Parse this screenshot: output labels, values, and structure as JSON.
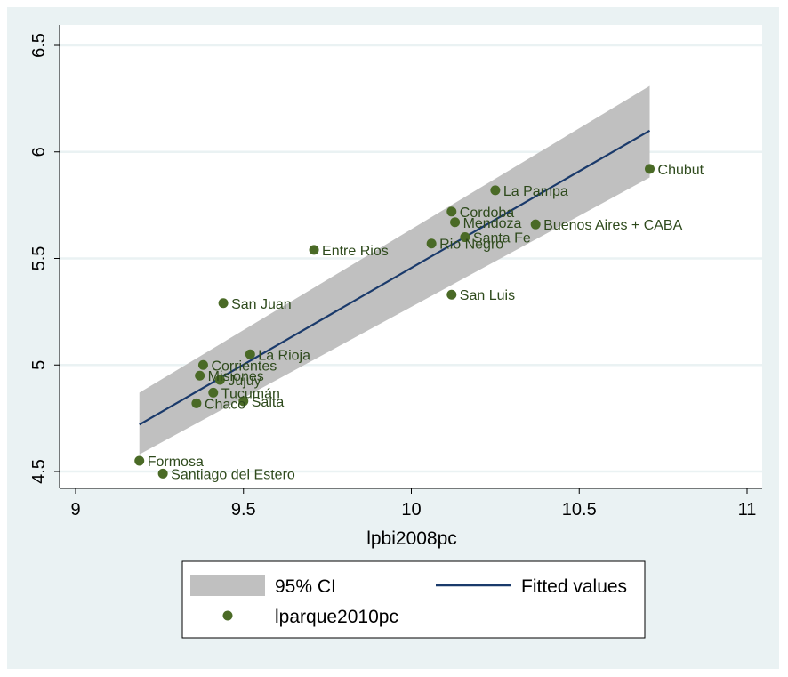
{
  "chart_data": {
    "type": "scatter",
    "xlabel": "lpbi2008pc",
    "ylabel": "",
    "xlim": [
      9,
      11
    ],
    "ylim": [
      4.5,
      6.5
    ],
    "xticks": [
      "9",
      "9.5",
      "10",
      "10.5",
      "11"
    ],
    "yticks": [
      "4.5",
      "5",
      "5.5",
      "6",
      "6.5"
    ],
    "grid": true,
    "legend_position": "bottom",
    "legend": {
      "ci": "95% CI",
      "fit": "Fitted values",
      "points": "lparque2010pc"
    },
    "colors": {
      "band": "#c0c0c0",
      "line": "#1a3a6b",
      "points": "#4a6a26",
      "plot_bg": "#ffffff",
      "outer_bg": "#eaf2f3",
      "grid": "#eaf2f3"
    },
    "fitted_line": {
      "x": [
        9.19,
        10.71
      ],
      "y": [
        4.72,
        6.1
      ]
    },
    "ci_band": {
      "x": [
        9.19,
        10.71
      ],
      "lower": [
        4.58,
        5.88
      ],
      "upper": [
        4.87,
        6.31
      ]
    },
    "points": [
      {
        "name": "Chubut",
        "x": 10.71,
        "y": 5.92
      },
      {
        "name": "La Pampa",
        "x": 10.25,
        "y": 5.82
      },
      {
        "name": "Cordoba",
        "x": 10.12,
        "y": 5.72
      },
      {
        "name": "Mendoza",
        "x": 10.13,
        "y": 5.67
      },
      {
        "name": "Buenos Aires + CABA",
        "x": 10.37,
        "y": 5.66
      },
      {
        "name": "Santa Fe",
        "x": 10.16,
        "y": 5.6
      },
      {
        "name": "Rio Negro",
        "x": 10.06,
        "y": 5.57
      },
      {
        "name": "Entre Rios",
        "x": 9.71,
        "y": 5.54
      },
      {
        "name": "San Luis",
        "x": 10.12,
        "y": 5.33
      },
      {
        "name": "San Juan",
        "x": 9.44,
        "y": 5.29
      },
      {
        "name": "La Rioja",
        "x": 9.52,
        "y": 5.05
      },
      {
        "name": "Corrientes",
        "x": 9.38,
        "y": 5.0
      },
      {
        "name": "Misiones",
        "x": 9.37,
        "y": 4.95
      },
      {
        "name": "Jujuy",
        "x": 9.43,
        "y": 4.93
      },
      {
        "name": "Tucumán",
        "x": 9.41,
        "y": 4.87
      },
      {
        "name": "Chaco",
        "x": 9.36,
        "y": 4.82
      },
      {
        "name": "Salta",
        "x": 9.5,
        "y": 4.83
      },
      {
        "name": "Formosa",
        "x": 9.19,
        "y": 4.55
      },
      {
        "name": "Santiago del Estero",
        "x": 9.26,
        "y": 4.49
      }
    ]
  }
}
